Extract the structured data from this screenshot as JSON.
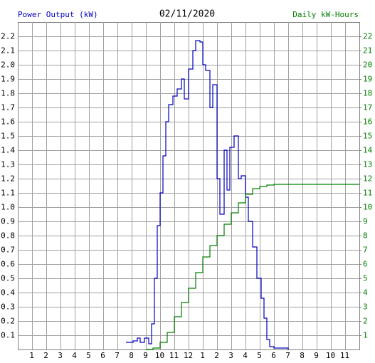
{
  "chart_data": {
    "type": "line",
    "step": true,
    "title": "02/11/2020",
    "ylabel": "Power Output (kW)",
    "y2label": "Daily kW-Hours",
    "xlim": [
      0,
      24
    ],
    "xticks": [
      1,
      2,
      3,
      4,
      5,
      6,
      7,
      8,
      9,
      10,
      11,
      12,
      {
        "value": 13,
        "label": "1"
      },
      {
        "value": 14,
        "label": "2"
      },
      {
        "value": 15,
        "label": "3"
      },
      {
        "value": 16,
        "label": "4"
      },
      {
        "value": 17,
        "label": "5"
      },
      {
        "value": 18,
        "label": "6"
      },
      {
        "value": 19,
        "label": "7"
      },
      {
        "value": 20,
        "label": "8"
      },
      {
        "value": 21,
        "label": "9"
      },
      {
        "value": 22,
        "label": "10"
      },
      {
        "value": 23,
        "label": "11"
      }
    ],
    "ylim": [
      0,
      2.3
    ],
    "yticks": [
      0.1,
      0.2,
      0.3,
      0.4,
      0.5,
      0.6,
      0.7,
      0.8,
      0.9,
      {
        "value": 1,
        "label": "1.0"
      },
      1.1,
      1.2,
      1.3,
      1.4,
      1.5,
      1.6,
      1.7,
      1.8,
      1.9,
      {
        "value": 2,
        "label": "2.0"
      },
      2.1,
      2.2
    ],
    "y2lim": [
      0,
      23
    ],
    "y2ticks": [
      1,
      2,
      3,
      4,
      5,
      6,
      7,
      8,
      9,
      10,
      11,
      12,
      13,
      14,
      15,
      16,
      17,
      18,
      19,
      20,
      21,
      22
    ],
    "grid": true,
    "series": [
      {
        "color": "#0000c0",
        "x": [
          7.6,
          8.1,
          8.4,
          8.6,
          8.9,
          9.2,
          9.4,
          9.6,
          9.8,
          10.0,
          10.2,
          10.4,
          10.6,
          10.9,
          11.2,
          11.5,
          11.7,
          12.0,
          12.3,
          12.5,
          12.8,
          13.0,
          13.2,
          13.5,
          13.7,
          14.0,
          14.2,
          14.5,
          14.7,
          14.9,
          15.2,
          15.5,
          15.7,
          16.0,
          16.2,
          16.5,
          16.8,
          17.1,
          17.3,
          17.5,
          17.7,
          18.0,
          19.0
        ],
        "values": [
          0.05,
          0.06,
          0.08,
          0.05,
          0.08,
          0.04,
          0.18,
          0.5,
          0.87,
          1.1,
          1.36,
          1.6,
          1.72,
          1.78,
          1.83,
          1.9,
          1.76,
          1.97,
          2.1,
          2.17,
          2.16,
          2.0,
          1.96,
          1.7,
          1.86,
          1.2,
          0.95,
          1.4,
          1.12,
          1.42,
          1.5,
          1.2,
          1.22,
          1.07,
          0.9,
          0.72,
          0.5,
          0.36,
          0.22,
          0.07,
          0.02,
          0.01,
          0
        ]
      },
      {
        "color": "#008000",
        "axis": "y2",
        "x": [
          9.0,
          9.5,
          10.0,
          10.5,
          11.0,
          11.5,
          12.0,
          12.5,
          13.0,
          13.5,
          14.0,
          14.5,
          15.0,
          15.5,
          16.0,
          16.5,
          17.0,
          17.5,
          18.0,
          24.0
        ],
        "values": [
          0,
          0.1,
          0.5,
          1.2,
          2.3,
          3.3,
          4.3,
          5.4,
          6.5,
          7.3,
          8.0,
          8.8,
          9.6,
          10.3,
          10.9,
          11.3,
          11.45,
          11.55,
          11.6,
          11.6
        ]
      }
    ]
  }
}
